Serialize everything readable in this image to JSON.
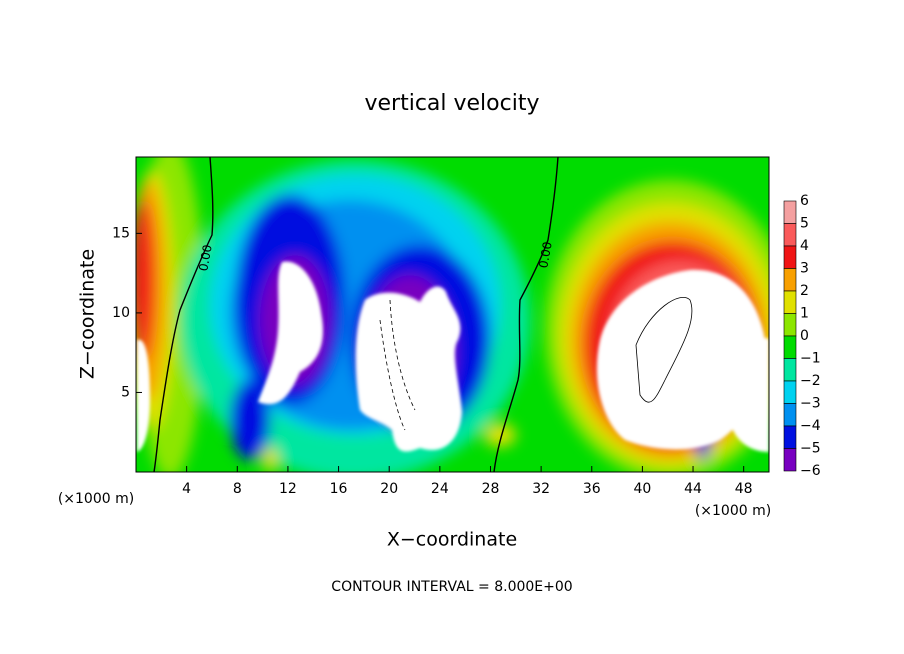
{
  "chart_data": {
    "type": "contour",
    "title": "vertical velocity",
    "xlabel": "X−coordinate",
    "ylabel": "Z−coordinate",
    "x_unit_left": "(×1000 m)",
    "x_unit_right": "(×1000 m)",
    "footer": "CONTOUR INTERVAL = 8.000E+00",
    "contour_labels": [
      "0.00",
      "0.00"
    ],
    "xlim": [
      0,
      50
    ],
    "xticks": [
      4,
      8,
      12,
      16,
      20,
      24,
      28,
      32,
      36,
      40,
      44,
      48
    ],
    "ylim": [
      0,
      19.8
    ],
    "yticks": [
      5,
      10,
      15
    ],
    "colorbar": {
      "ticks": [
        6,
        5,
        4,
        3,
        2,
        1,
        0,
        {
          "value": -1,
          "label": "−1"
        },
        {
          "value": -2,
          "label": "−2"
        },
        {
          "value": -3,
          "label": "−3"
        },
        {
          "value": -4,
          "label": "−4"
        },
        {
          "value": -5,
          "label": "−5"
        },
        {
          "value": -6,
          "label": "−6"
        }
      ],
      "colors": [
        "#f4a0a0",
        "#fa5a5a",
        "#f01414",
        "#f8a000",
        "#e0e000",
        "#8ce600",
        "#00dc00",
        "#00e6a0",
        "#00d2f0",
        "#0090f0",
        "#0010e0",
        "#7800c0"
      ]
    }
  }
}
